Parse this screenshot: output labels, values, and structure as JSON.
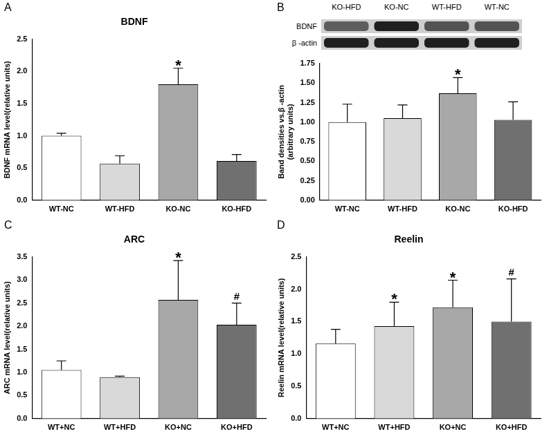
{
  "chart_data": [
    {
      "type": "bar",
      "panel": "A",
      "title": "BDNF",
      "y_label": "BDNF mRNA level(relative units)",
      "categories": [
        "WT-NC",
        "WT-HFD",
        "KO-NC",
        "KO-HFD"
      ],
      "values": [
        1.0,
        0.57,
        1.8,
        0.61
      ],
      "errors": [
        0.04,
        0.12,
        0.25,
        0.1
      ],
      "colors": [
        "#ffffff",
        "#d9d9d9",
        "#a8a8a8",
        "#707070"
      ],
      "ylim": [
        0,
        2.5
      ],
      "yticks": [
        {
          "value": 0,
          "label": "0.0"
        },
        {
          "value": 0.5,
          "label": "0.5"
        },
        {
          "value": 1,
          "label": "1.0"
        },
        {
          "value": 1.5,
          "label": "1.5"
        },
        {
          "value": 2,
          "label": "2.0"
        },
        {
          "value": 2.5,
          "label": "2.5"
        }
      ],
      "annotations": [
        {
          "category": "KO-NC",
          "text": "*"
        }
      ],
      "grid": false
    },
    {
      "type": "bar",
      "panel": "B",
      "blot": {
        "lanes": [
          "KO-HFD",
          "KO-NC",
          "WT-HFD",
          "WT-NC"
        ],
        "rows": [
          "BDNF",
          "β -actin"
        ]
      },
      "y_label": [
        "Band densities vs.β -actin",
        "(arbitrary units)"
      ],
      "categories": [
        "WT-NC",
        "WT-HFD",
        "KO-NC",
        "KO-HFD"
      ],
      "values": [
        1.0,
        1.05,
        1.37,
        1.03
      ],
      "errors": [
        0.23,
        0.17,
        0.2,
        0.23
      ],
      "colors": [
        "#ffffff",
        "#d9d9d9",
        "#a8a8a8",
        "#707070"
      ],
      "ylim": [
        0,
        1.75
      ],
      "yticks": [
        {
          "value": 0,
          "label": "0.00"
        },
        {
          "value": 0.25,
          "label": "0.25"
        },
        {
          "value": 0.5,
          "label": "0.50"
        },
        {
          "value": 0.75,
          "label": "0.75"
        },
        {
          "value": 1,
          "label": "1.00"
        },
        {
          "value": 1.25,
          "label": "1.25"
        },
        {
          "value": 1.5,
          "label": "1.50"
        },
        {
          "value": 1.75,
          "label": "1.75"
        }
      ],
      "annotations": [
        {
          "category": "KO-NC",
          "text": "*"
        }
      ],
      "grid": false
    },
    {
      "type": "bar",
      "panel": "C",
      "title": "ARC",
      "y_label": "ARC mRNA level(relative units)",
      "categories": [
        "WT+NC",
        "WT+HFD",
        "KO+NC",
        "KO+HFD"
      ],
      "values": [
        1.05,
        0.9,
        2.57,
        2.03
      ],
      "errors": [
        0.2,
        0.02,
        0.85,
        0.47
      ],
      "colors": [
        "#ffffff",
        "#d9d9d9",
        "#a8a8a8",
        "#707070"
      ],
      "ylim": [
        0,
        3.5
      ],
      "yticks": [
        {
          "value": 0,
          "label": "0.0"
        },
        {
          "value": 0.5,
          "label": "0.5"
        },
        {
          "value": 1,
          "label": "1.0"
        },
        {
          "value": 1.5,
          "label": "1.5"
        },
        {
          "value": 2,
          "label": "2.0"
        },
        {
          "value": 2.5,
          "label": "2.5"
        },
        {
          "value": 3,
          "label": "3.0"
        },
        {
          "value": 3.5,
          "label": "3.5"
        }
      ],
      "annotations": [
        {
          "category": "KO+NC",
          "text": "*"
        },
        {
          "category": "KO+HFD",
          "text": "#"
        }
      ],
      "grid": false
    },
    {
      "type": "bar",
      "panel": "D",
      "title": "Reelin",
      "y_label": "Reelin mRNA level(relative units)",
      "categories": [
        "WT+NC",
        "WT+HFD",
        "KO+NC",
        "KO+HFD"
      ],
      "values": [
        1.16,
        1.43,
        1.72,
        1.5
      ],
      "errors": [
        0.22,
        0.37,
        0.42,
        0.66
      ],
      "colors": [
        "#ffffff",
        "#d9d9d9",
        "#a8a8a8",
        "#707070"
      ],
      "ylim": [
        0,
        2.5
      ],
      "yticks": [
        {
          "value": 0,
          "label": "0.0"
        },
        {
          "value": 0.5,
          "label": "0.5"
        },
        {
          "value": 1,
          "label": "1.0"
        },
        {
          "value": 1.5,
          "label": "1.5"
        },
        {
          "value": 2,
          "label": "2.0"
        },
        {
          "value": 2.5,
          "label": "2.5"
        }
      ],
      "annotations": [
        {
          "category": "WT+HFD",
          "text": "*"
        },
        {
          "category": "KO+NC",
          "text": "*"
        },
        {
          "category": "KO+HFD",
          "text": "#"
        }
      ],
      "grid": false
    }
  ]
}
